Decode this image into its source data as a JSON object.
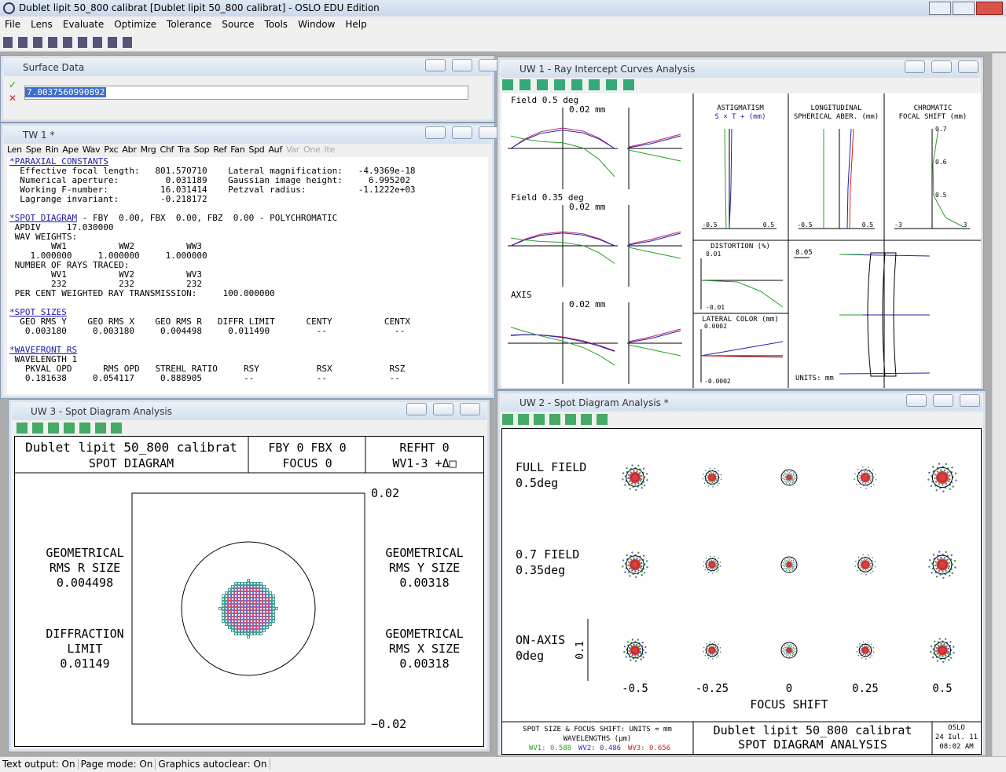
{
  "titlebar": {
    "title": "Dublet lipit 50_800 calibrat [Dublet lipit 50_800 calibrat] - OSLO EDU Edition"
  },
  "menu": [
    "File",
    "Lens",
    "Evaluate",
    "Optimize",
    "Tolerance",
    "Source",
    "Tools",
    "Window",
    "Help"
  ],
  "surface_data": {
    "title": "Surface Data",
    "input": "7.0037560990892"
  },
  "tw1": {
    "title": "TW 1 *",
    "toolbar": [
      "Len",
      "Spe",
      "Rin",
      "Ape",
      "Wav",
      "Pxc",
      "Abr",
      "Mrg",
      "Chf",
      "Tra",
      "Sop",
      "Ref",
      "Fan",
      "Spd",
      "Auf",
      "Var",
      "One",
      "Ite"
    ],
    "sections": [
      {
        "heading": "*PARAXIAL CONSTANTS",
        "heading_rest": "",
        "lines": [
          "  Effective focal length:   801.570710    Lateral magnification:   -4.9369e-18",
          "  Numerical aperture:         0.031189    Gaussian image height:     6.995202",
          "  Working F-number:          16.031414    Petzval radius:          -1.1222e+03",
          "  Lagrange invariant:        -0.218172"
        ]
      },
      {
        "heading": "*SPOT DIAGRAM",
        "heading_rest": " - FBY  0.00, FBX  0.00, FBZ  0.00 - POLYCHROMATIC",
        "lines": [
          " APDIV     17.030000",
          " WAV WEIGHTS:",
          "        WW1          WW2          WW3",
          "    1.000000     1.000000     1.000000",
          " NUMBER OF RAYS TRACED:",
          "        WV1          WV2          WV3",
          "        232          232          232",
          " PER CENT WEIGHTED RAY TRANSMISSION:     100.000000"
        ]
      },
      {
        "heading": "*SPOT SIZES",
        "heading_rest": "",
        "lines": [
          "  GEO RMS Y    GEO RMS X    GEO RMS R   DIFFR LIMIT      CENTY          CENTX",
          "   0.003180     0.003180     0.004498     0.011490         --             --"
        ]
      },
      {
        "heading": "*WAVEFRONT RS",
        "heading_rest": "",
        "lines": [
          " WAVELENGTH 1",
          "   PKVAL OPD      RMS OPD   STREHL RATIO     RSY           RSX           RSZ",
          "   0.181638     0.054117     0.888905        --            --            --"
        ]
      }
    ]
  },
  "uw1": {
    "title": "UW 1 - Ray Intercept Curves Analysis",
    "fields": [
      {
        "label": "Field 0.5 deg",
        "scale": "0.02 mm"
      },
      {
        "label": "Field 0.35 deg",
        "scale": "0.02 mm"
      },
      {
        "label": "AXIS",
        "scale": "0.02 mm"
      }
    ],
    "astigmatism": {
      "title": "ASTIGMATISM",
      "legend": "S × T + (mm)",
      "xmin": "-0.5",
      "xmax": "0.5"
    },
    "longitudinal": {
      "title": "LONGITUDINAL",
      "subtitle": "SPHERICAL ABER. (mm)",
      "xmin": "-0.5",
      "xmax": "0.5"
    },
    "chromatic": {
      "title": "CHROMATIC",
      "subtitle": "FOCAL SHIFT (mm)",
      "yticks": [
        "0.7",
        "0.6",
        "0.5"
      ],
      "xmin": "-3",
      "xmax": "3"
    },
    "distortion": {
      "title": "DISTORTION (%)",
      "ymax": "0.01",
      "ymin": "-0.01"
    },
    "lateral_color": {
      "title": "LATERAL COLOR (mm)",
      "ymax": "0.0002",
      "ymin": "-0.0002"
    },
    "lens": {
      "diameter": "8.05",
      "units": "UNITS: mm"
    }
  },
  "uw3": {
    "title": "UW 3 - Spot Diagram Analysis",
    "header": {
      "lens": "Dublet lipit 50_800 calibrat",
      "kind": "SPOT DIAGRAM",
      "field": "FBY 0 FBX 0",
      "focus": "FOCUS 0",
      "refht": "REFHT 0",
      "wavelengths": "WV1-3 +Δ□"
    },
    "scale_top": "0.02",
    "scale_bottom": "−0.02",
    "left": [
      [
        "GEOMETRICAL",
        "RMS R SIZE",
        "0.004498"
      ],
      [
        "DIFFRACTION",
        "LIMIT",
        "0.01149"
      ]
    ],
    "right": [
      [
        "GEOMETRICAL",
        "RMS Y SIZE",
        "0.00318"
      ],
      [
        "GEOMETRICAL",
        "RMS X SIZE",
        "0.00318"
      ]
    ]
  },
  "uw2": {
    "title": "UW 2 - Spot Diagram Analysis *",
    "rows": [
      [
        "FULL FIELD",
        "0.5deg"
      ],
      [
        "0.7 FIELD",
        "0.35deg"
      ],
      [
        "ON-AXIS",
        "0deg"
      ]
    ],
    "scale": "0.1",
    "focus_shifts": [
      "-0.5",
      "-0.25",
      "0",
      "0.25",
      "0.5"
    ],
    "x_label": "FOCUS SHIFT",
    "footer": {
      "units": "SPOT SIZE & FOCUS SHIFT: UNITS = mm",
      "wavelengths": "WAVELENGTHS (µm)",
      "wv": [
        {
          "text": "WV1: 0.588",
          "color": "#2a9d2a"
        },
        {
          "text": "WV2: 0.486",
          "color": "#2a2ad0"
        },
        {
          "text": "WV3: 0.656",
          "color": "#d02020"
        }
      ],
      "lens": "Dublet lipit 50_800 calibrat",
      "kind": "SPOT DIAGRAM ANALYSIS",
      "program": "OSLO",
      "date": "24 Iul. 11",
      "time": "08:02 AM"
    }
  },
  "status": [
    "Text output: On",
    "Page mode: On",
    "Graphics autoclear: On"
  ]
}
